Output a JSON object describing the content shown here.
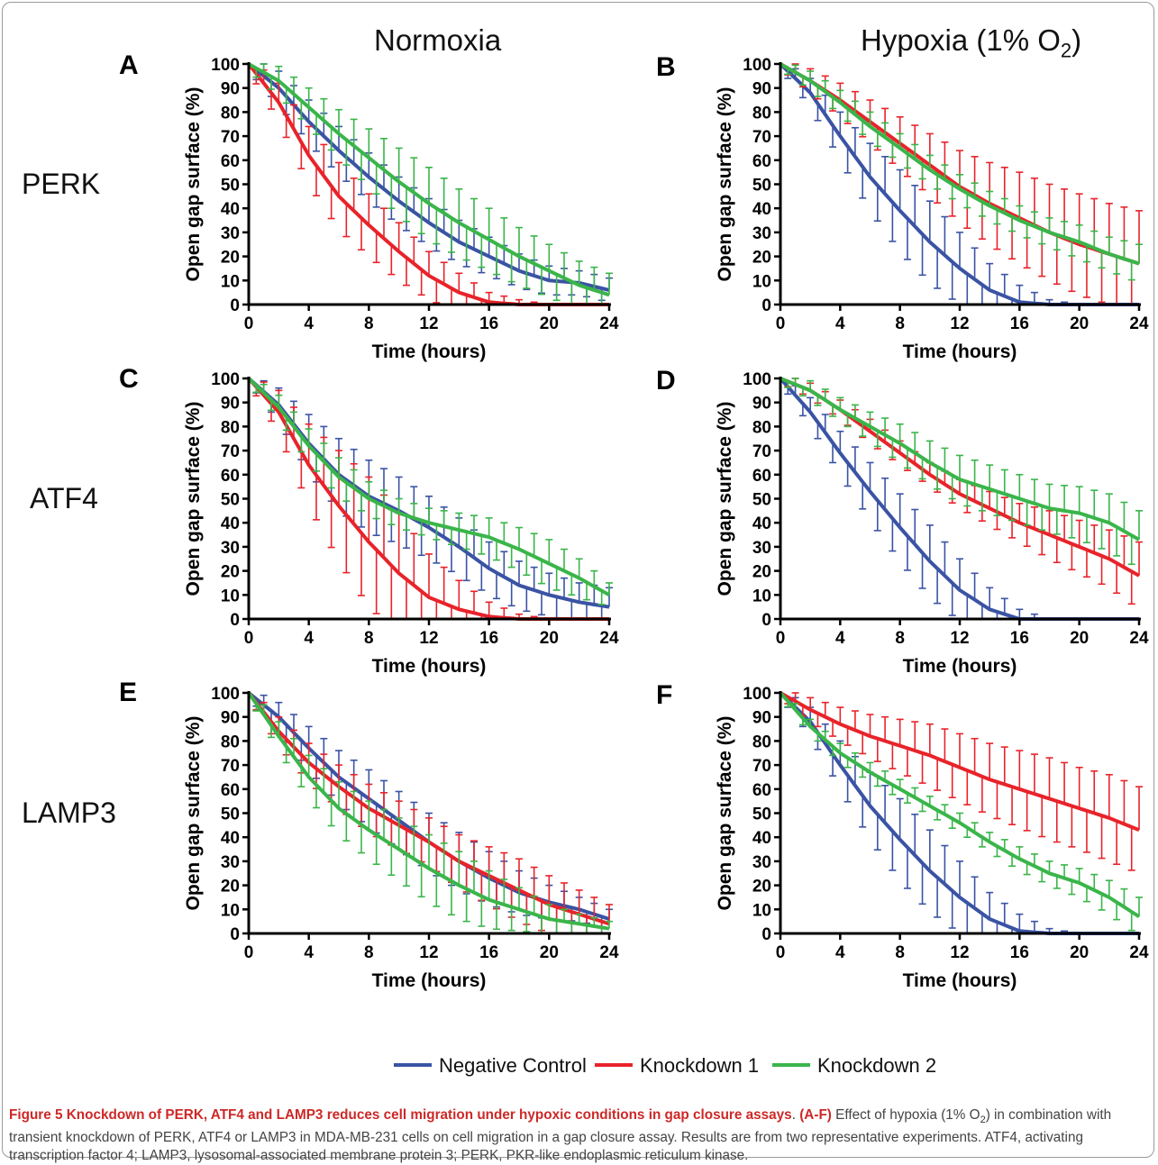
{
  "columns": [
    {
      "title_main": "Normoxia",
      "title_sub": "",
      "title_tail": ""
    },
    {
      "title_main": "Hypoxia (1% O",
      "title_sub": "2",
      "title_tail": ")"
    }
  ],
  "rows": [
    "PERK",
    "ATF4",
    "LAMP3"
  ],
  "legend": [
    {
      "label": "Negative Control",
      "color": "#3a53a4"
    },
    {
      "label": "Knockdown 1",
      "color": "#e8232a"
    },
    {
      "label": "Knockdown 2",
      "color": "#3ab54a"
    }
  ],
  "caption": {
    "title": "Figure 5 Knockdown of PERK, ATF4 and LAMP3 reduces cell migration under hypoxic conditions in gap closure assays",
    "lead": "(A-F)",
    "body_1": " Effect of hypoxia (1% O",
    "body_sub": "2",
    "body_2": ") in combination with transient knockdown of PERK, ATF4 or LAMP3 in MDA-MB-231 cells on cell migration in a gap closure assay. Results are from two representative experiments. ATF4, activating transcription factor 4; LAMP3, lysosomal-associated membrane protein 3; PERK, PKR-like endoplasmic reticulum kinase."
  },
  "chart_data": [
    {
      "panel": "A",
      "type": "line",
      "row": "PERK",
      "condition": "Normoxia",
      "xlabel": "Time (hours)",
      "ylabel": "Open gap surface (%)",
      "xlim": [
        0,
        24
      ],
      "ylim": [
        0,
        100
      ],
      "xticks": [
        0,
        4,
        8,
        12,
        16,
        20,
        24
      ],
      "yticks": [
        0,
        10,
        20,
        30,
        40,
        50,
        60,
        70,
        80,
        90,
        100
      ],
      "x": [
        0,
        2,
        4,
        6,
        8,
        10,
        12,
        14,
        16,
        18,
        20,
        22,
        24
      ],
      "series": [
        {
          "name": "Negative Control",
          "y": [
            100,
            90,
            76,
            64,
            53,
            43,
            34,
            26,
            20,
            14,
            10,
            9,
            6
          ],
          "err": [
            3,
            7,
            9,
            10,
            10,
            10,
            10,
            9,
            8,
            7,
            6,
            5,
            5
          ]
        },
        {
          "name": "Knockdown 1",
          "y": [
            100,
            84,
            62,
            45,
            33,
            22,
            12,
            5,
            1,
            0,
            0,
            0,
            0
          ],
          "err": [
            3,
            8,
            12,
            14,
            13,
            12,
            10,
            8,
            4,
            2,
            0,
            0,
            0
          ]
        },
        {
          "name": "Knockdown 2",
          "y": [
            100,
            93,
            82,
            71,
            61,
            51,
            42,
            34,
            27,
            20,
            14,
            8,
            4
          ],
          "err": [
            3,
            6,
            8,
            10,
            12,
            14,
            15,
            14,
            13,
            12,
            11,
            10,
            9
          ]
        }
      ]
    },
    {
      "panel": "B",
      "type": "line",
      "row": "PERK",
      "condition": "Hypoxia (1% O2)",
      "xlabel": "Time (hours)",
      "ylabel": "Open gap surface (%)",
      "xlim": [
        0,
        24
      ],
      "ylim": [
        0,
        100
      ],
      "xticks": [
        0,
        4,
        8,
        12,
        16,
        20,
        24
      ],
      "yticks": [
        0,
        10,
        20,
        30,
        40,
        50,
        60,
        70,
        80,
        90,
        100
      ],
      "x": [
        0,
        2,
        4,
        6,
        8,
        10,
        12,
        14,
        16,
        18,
        20,
        22,
        24
      ],
      "series": [
        {
          "name": "Negative Control",
          "y": [
            100,
            88,
            70,
            53,
            39,
            26,
            15,
            6,
            1,
            0,
            0,
            0,
            0
          ],
          "err": [
            2,
            6,
            10,
            14,
            17,
            17,
            15,
            11,
            7,
            2,
            0,
            0,
            0
          ]
        },
        {
          "name": "Knockdown 1",
          "y": [
            100,
            93,
            85,
            76,
            67,
            58,
            49,
            42,
            36,
            30,
            25,
            21,
            17
          ],
          "err": [
            2,
            5,
            7,
            9,
            11,
            13,
            15,
            17,
            19,
            20,
            21,
            21,
            22
          ]
        },
        {
          "name": "Knockdown 2",
          "y": [
            100,
            93,
            84,
            74,
            65,
            56,
            48,
            41,
            35,
            30,
            26,
            21,
            17
          ],
          "err": [
            2,
            4,
            5,
            6,
            6,
            6,
            6,
            6,
            6,
            6,
            7,
            7,
            8
          ]
        }
      ]
    },
    {
      "panel": "C",
      "type": "line",
      "row": "ATF4",
      "condition": "Normoxia",
      "xlabel": "Time (hours)",
      "ylabel": "Open gap surface (%)",
      "xlim": [
        0,
        24
      ],
      "ylim": [
        0,
        100
      ],
      "xticks": [
        0,
        4,
        8,
        12,
        16,
        20,
        24
      ],
      "yticks": [
        0,
        10,
        20,
        30,
        40,
        50,
        60,
        70,
        80,
        90,
        100
      ],
      "x": [
        0,
        2,
        4,
        6,
        8,
        10,
        12,
        14,
        16,
        18,
        20,
        22,
        24
      ],
      "series": [
        {
          "name": "Negative Control",
          "y": [
            100,
            89,
            73,
            60,
            51,
            45,
            38,
            30,
            21,
            14,
            10,
            7,
            5
          ],
          "err": [
            2,
            7,
            12,
            15,
            15,
            14,
            13,
            12,
            11,
            10,
            9,
            8,
            8
          ]
        },
        {
          "name": "Knockdown 1",
          "y": [
            100,
            86,
            64,
            47,
            32,
            19,
            9,
            4,
            1,
            0,
            0,
            0,
            0
          ],
          "err": [
            2,
            9,
            17,
            23,
            27,
            25,
            18,
            12,
            6,
            2,
            0,
            0,
            0
          ]
        },
        {
          "name": "Knockdown 2",
          "y": [
            100,
            88,
            72,
            59,
            50,
            44,
            40,
            37,
            34,
            29,
            23,
            17,
            10
          ],
          "err": [
            2,
            5,
            7,
            8,
            7,
            6,
            6,
            7,
            8,
            9,
            10,
            8,
            5
          ]
        }
      ]
    },
    {
      "panel": "D",
      "type": "line",
      "row": "ATF4",
      "condition": "Hypoxia (1% O2)",
      "xlabel": "Time (hours)",
      "ylabel": "Open gap surface (%)",
      "xlim": [
        0,
        24
      ],
      "ylim": [
        0,
        100
      ],
      "xticks": [
        0,
        4,
        8,
        12,
        16,
        20,
        24
      ],
      "yticks": [
        0,
        10,
        20,
        30,
        40,
        50,
        60,
        70,
        80,
        90,
        100
      ],
      "x": [
        0,
        2,
        4,
        6,
        8,
        10,
        12,
        14,
        16,
        18,
        20,
        22,
        24
      ],
      "series": [
        {
          "name": "Negative Control",
          "y": [
            100,
            86,
            69,
            53,
            38,
            24,
            12,
            4,
            0,
            0,
            0,
            0,
            0
          ],
          "err": [
            2,
            6,
            9,
            12,
            14,
            15,
            13,
            9,
            4,
            0,
            0,
            0,
            0
          ]
        },
        {
          "name": "Knockdown 1",
          "y": [
            100,
            95,
            87,
            78,
            69,
            60,
            52,
            46,
            40,
            35,
            30,
            25,
            18
          ],
          "err": [
            2,
            3,
            4,
            5,
            5,
            5,
            6,
            7,
            8,
            10,
            11,
            12,
            14
          ]
        },
        {
          "name": "Knockdown 2",
          "y": [
            100,
            95,
            87,
            80,
            73,
            65,
            58,
            54,
            50,
            46,
            44,
            40,
            33
          ],
          "err": [
            2,
            4,
            5,
            6,
            8,
            9,
            10,
            10,
            10,
            10,
            11,
            12,
            12
          ]
        }
      ]
    },
    {
      "panel": "E",
      "type": "line",
      "row": "LAMP3",
      "condition": "Normoxia",
      "xlabel": "Time (hours)",
      "ylabel": "Open gap surface (%)",
      "xlim": [
        0,
        24
      ],
      "ylim": [
        0,
        100
      ],
      "xticks": [
        0,
        4,
        8,
        12,
        16,
        20,
        24
      ],
      "yticks": [
        0,
        10,
        20,
        30,
        40,
        50,
        60,
        70,
        80,
        90,
        100
      ],
      "x": [
        0,
        2,
        4,
        6,
        8,
        10,
        12,
        14,
        16,
        18,
        20,
        22,
        24
      ],
      "series": [
        {
          "name": "Negative Control",
          "y": [
            100,
            90,
            77,
            65,
            56,
            47,
            38,
            30,
            23,
            17,
            13,
            10,
            6
          ],
          "err": [
            2,
            6,
            9,
            11,
            12,
            12,
            12,
            12,
            11,
            9,
            7,
            5,
            4
          ]
        },
        {
          "name": "Knockdown 1",
          "y": [
            100,
            84,
            71,
            61,
            52,
            45,
            38,
            30,
            24,
            18,
            12,
            8,
            4
          ],
          "err": [
            2,
            6,
            8,
            9,
            10,
            10,
            10,
            11,
            12,
            13,
            12,
            10,
            8
          ]
        },
        {
          "name": "Knockdown 2",
          "y": [
            100,
            82,
            65,
            52,
            43,
            35,
            27,
            20,
            14,
            10,
            6,
            4,
            2
          ],
          "err": [
            2,
            6,
            9,
            11,
            12,
            13,
            14,
            14,
            12,
            9,
            6,
            4,
            3
          ]
        }
      ]
    },
    {
      "panel": "F",
      "type": "line",
      "row": "LAMP3",
      "condition": "Hypoxia (1% O2)",
      "xlabel": "Time (hours)",
      "ylabel": "Open gap surface (%)",
      "xlim": [
        0,
        24
      ],
      "ylim": [
        0,
        100
      ],
      "xticks": [
        0,
        4,
        8,
        12,
        16,
        20,
        24
      ],
      "yticks": [
        0,
        10,
        20,
        30,
        40,
        50,
        60,
        70,
        80,
        90,
        100
      ],
      "x": [
        0,
        2,
        4,
        6,
        8,
        10,
        12,
        14,
        16,
        18,
        20,
        22,
        24
      ],
      "series": [
        {
          "name": "Negative Control",
          "y": [
            100,
            88,
            70,
            53,
            39,
            26,
            15,
            6,
            1,
            0,
            0,
            0,
            0
          ],
          "err": [
            2,
            6,
            10,
            14,
            17,
            17,
            15,
            11,
            7,
            2,
            0,
            0,
            0
          ]
        },
        {
          "name": "Knockdown 1",
          "y": [
            100,
            93,
            87,
            82,
            78,
            74,
            69,
            64,
            60,
            56,
            52,
            48,
            43
          ],
          "err": [
            2,
            5,
            7,
            9,
            11,
            13,
            14,
            15,
            16,
            17,
            17,
            18,
            18
          ]
        },
        {
          "name": "Knockdown 2",
          "y": [
            100,
            86,
            75,
            67,
            60,
            53,
            46,
            38,
            31,
            25,
            21,
            15,
            7
          ],
          "err": [
            2,
            3,
            4,
            4,
            4,
            4,
            4,
            4,
            5,
            5,
            6,
            7,
            8
          ]
        }
      ]
    }
  ]
}
